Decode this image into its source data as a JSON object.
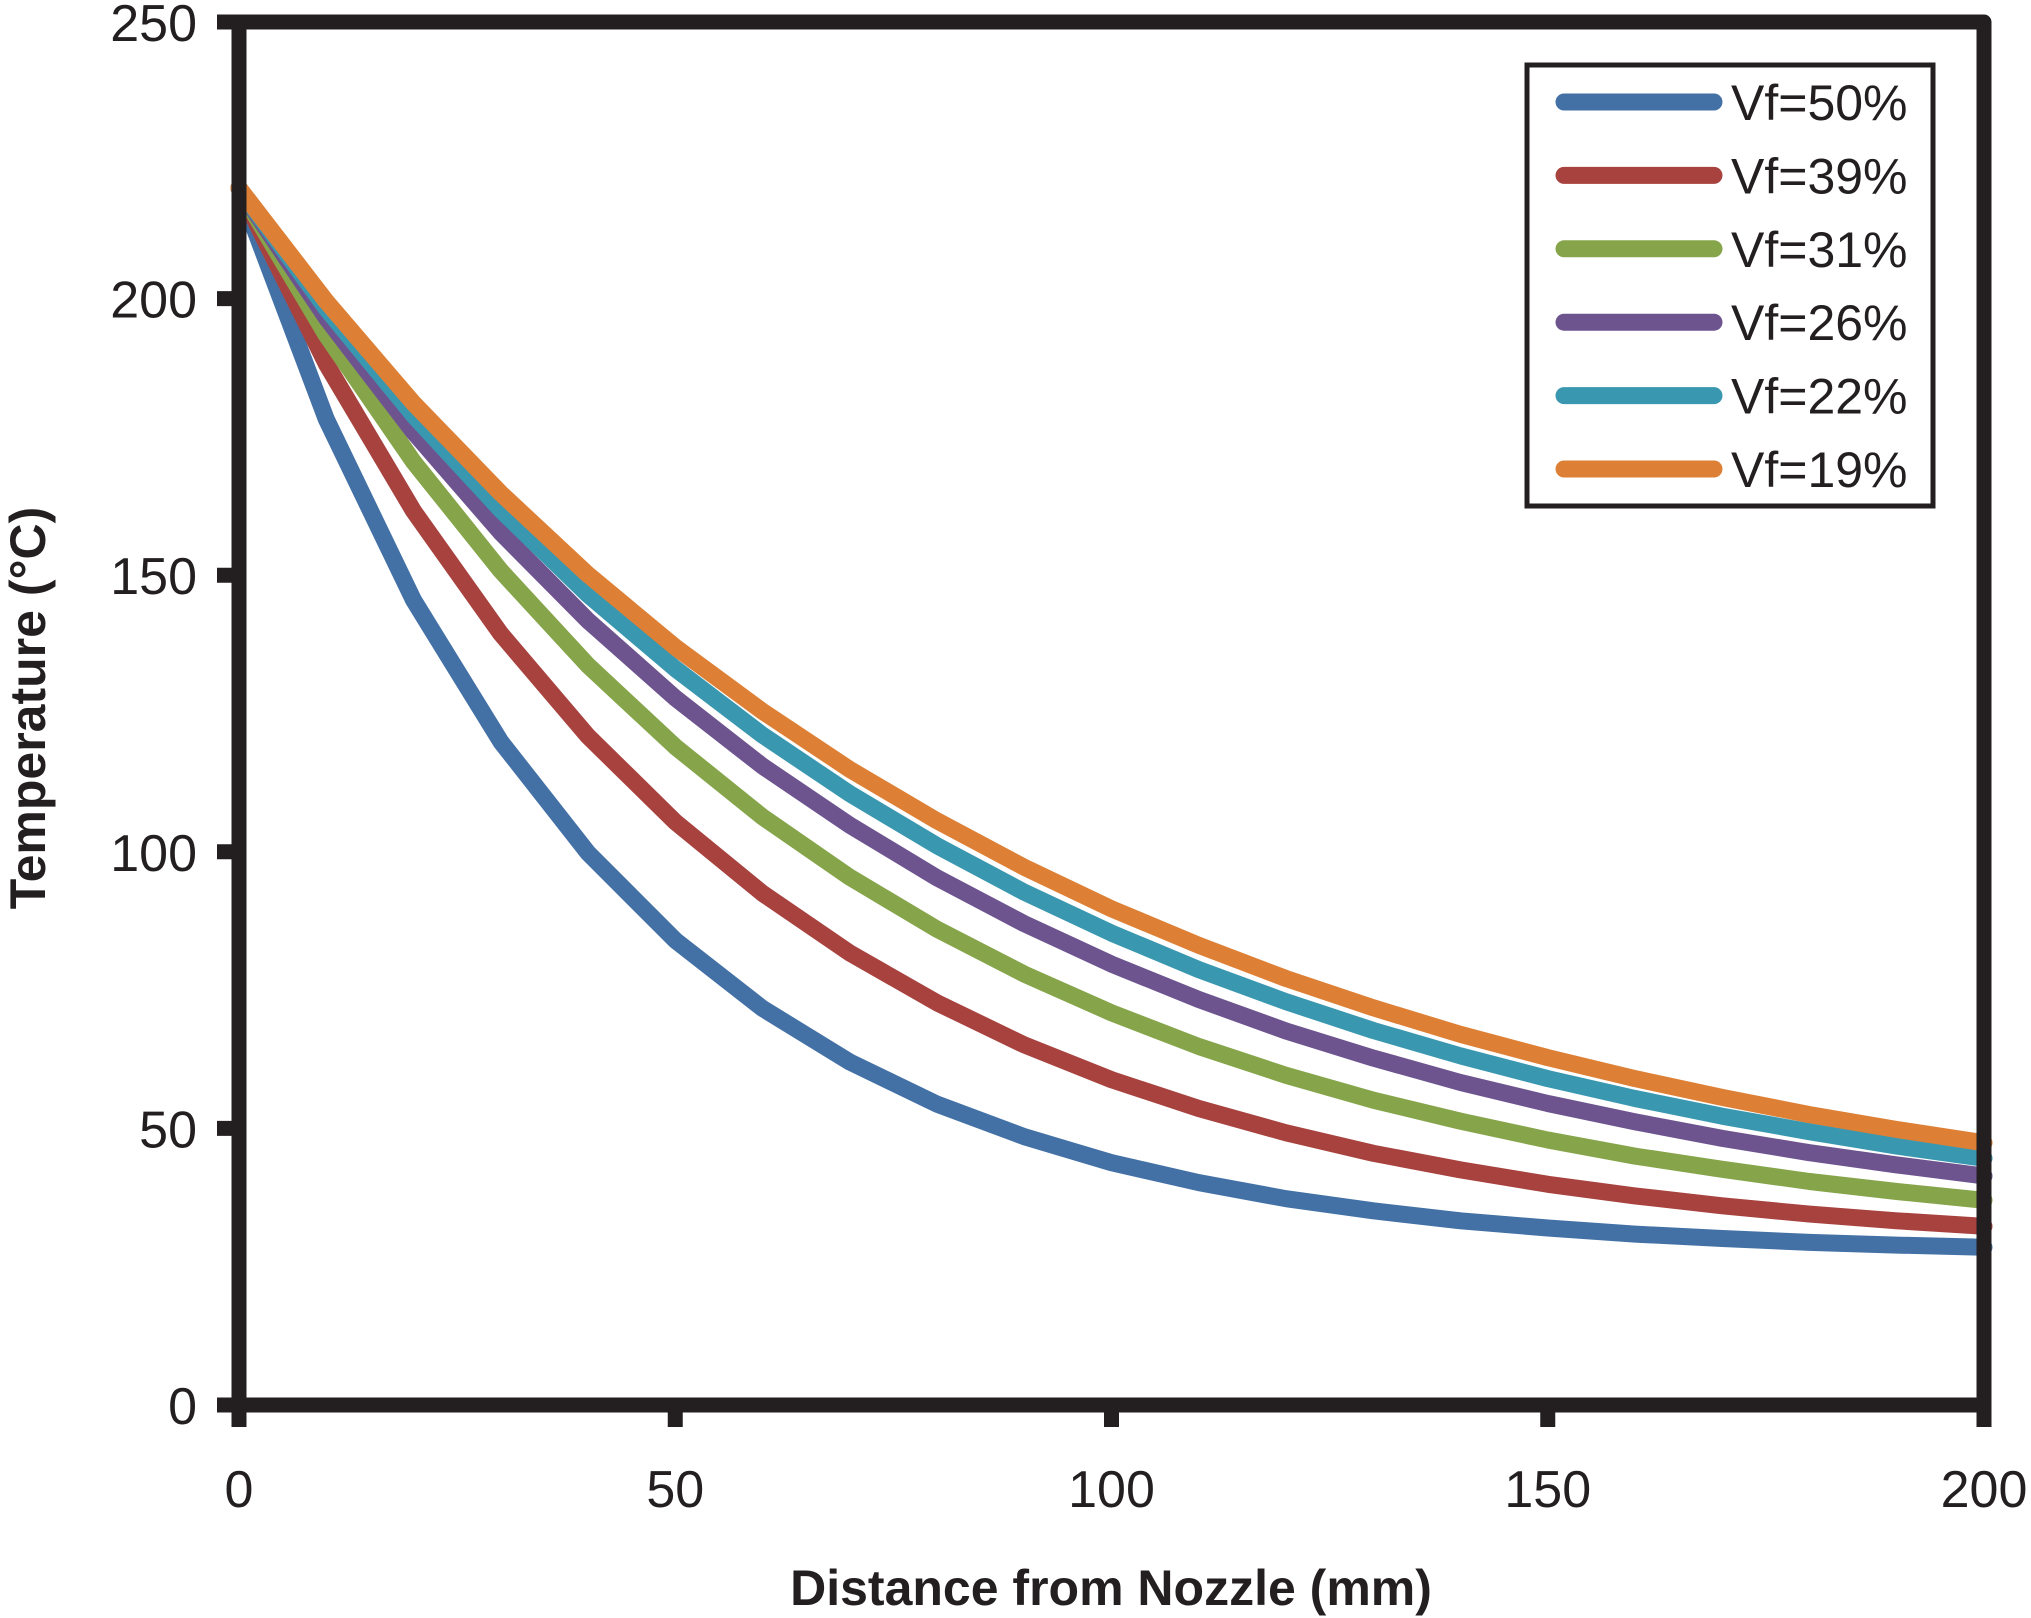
{
  "chart_data": {
    "type": "line",
    "title": "",
    "xlabel": "Distance from Nozzle (mm)",
    "ylabel": "Temperature (°C)",
    "xlim": [
      0,
      200
    ],
    "ylim": [
      0,
      250
    ],
    "x_ticks": [
      "0",
      "50",
      "100",
      "150",
      "200"
    ],
    "y_ticks": [
      "0",
      "50",
      "100",
      "150",
      "200",
      "250"
    ],
    "grid": false,
    "legend_position": "top-right",
    "x": [
      0,
      10,
      20,
      30,
      40,
      50,
      60,
      70,
      80,
      90,
      100,
      110,
      120,
      130,
      140,
      150,
      160,
      170,
      180,
      190,
      200
    ],
    "series": [
      {
        "name": "Vf=50%",
        "color": "#4371A6",
        "values": [
          220,
          178.2,
          145.5,
          119.9,
          99.8,
          84.0,
          71.7,
          62.0,
          54.4,
          48.5,
          43.8,
          40.2,
          37.3,
          35.1,
          33.3,
          32.0,
          30.9,
          30.1,
          29.4,
          28.9,
          28.5
        ]
      },
      {
        "name": "Vf=39%",
        "color": "#A8423F",
        "values": [
          220,
          188.2,
          161.6,
          139.4,
          120.9,
          105.4,
          92.5,
          81.7,
          72.7,
          65.1,
          58.8,
          53.6,
          49.2,
          45.5,
          42.5,
          39.9,
          37.8,
          36.0,
          34.5,
          33.3,
          32.3
        ]
      },
      {
        "name": "Vf=31%",
        "color": "#86A54A",
        "values": [
          220,
          193.4,
          170.5,
          150.8,
          133.7,
          119.0,
          106.3,
          95.4,
          86.0,
          77.9,
          70.9,
          64.8,
          59.6,
          55.1,
          51.3,
          47.9,
          45.0,
          42.6,
          40.4,
          38.6,
          37.0
        ]
      },
      {
        "name": "Vf=26%",
        "color": "#6D548F",
        "values": [
          220,
          196.5,
          175.9,
          157.7,
          141.8,
          127.8,
          115.5,
          104.8,
          95.3,
          87.0,
          79.7,
          73.3,
          67.6,
          62.7,
          58.3,
          54.5,
          51.2,
          48.2,
          45.6,
          43.4,
          41.4
        ]
      },
      {
        "name": "Vf=22%",
        "color": "#3A97B0",
        "values": [
          220,
          198.2,
          178.9,
          161.8,
          146.5,
          133.1,
          121.1,
          110.5,
          101.1,
          92.7,
          85.3,
          78.7,
          72.9,
          67.7,
          63.1,
          59.0,
          55.4,
          52.2,
          49.4,
          46.8,
          44.6
        ]
      },
      {
        "name": "Vf=19%",
        "color": "#DD8035",
        "values": [
          220,
          199.5,
          181.1,
          164.8,
          150.1,
          137.0,
          125.4,
          114.9,
          105.6,
          97.2,
          89.7,
          83.1,
          77.1,
          71.8,
          67.0,
          62.8,
          59.0,
          55.6,
          52.5,
          49.8,
          47.4
        ]
      }
    ]
  }
}
